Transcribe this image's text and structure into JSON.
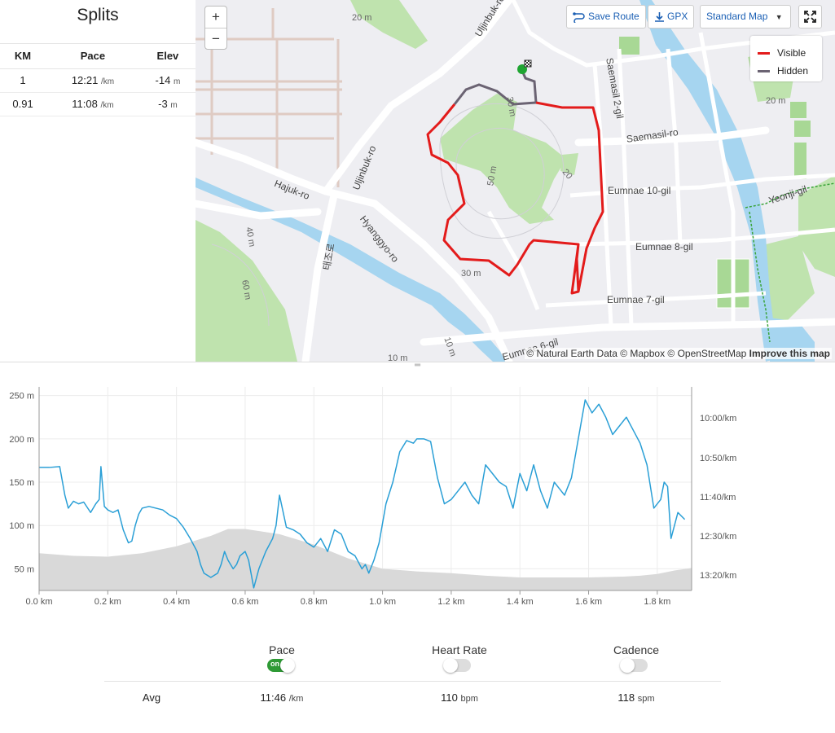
{
  "splits": {
    "title": "Splits",
    "columns": [
      "KM",
      "Pace",
      "Elev"
    ],
    "rows": [
      {
        "km": "1",
        "pace": "12:21",
        "pace_unit": "/km",
        "elev": "-14",
        "elev_unit": "m"
      },
      {
        "km": "0.91",
        "pace": "11:08",
        "pace_unit": "/km",
        "elev": "-3",
        "elev_unit": "m"
      }
    ]
  },
  "map": {
    "zoom_in": "+",
    "zoom_out": "−",
    "save_route": "Save Route",
    "gpx": "GPX",
    "style_select": "Standard Map",
    "legend": [
      {
        "label": "Visible",
        "color": "#e31b1b"
      },
      {
        "label": "Hidden",
        "color": "#6b6373"
      }
    ],
    "attribution": "© Natural Earth Data © Mapbox © OpenStreetMap",
    "improve": "Improve this map",
    "labels": {
      "uljinbuk_ro": "Uljinbuk-ro",
      "uljinbuk_ro_2": "Uljinbuk-ro",
      "hajuk_ro": "Hajuk-ro",
      "hyanggyo_ro": "Hyanggyo-ro",
      "korean": "태조로",
      "saemasil_2gil": "Saemasil 2-gil",
      "saemasil_ro": "Saemasil-ro",
      "eumnae_10gil": "Eumnae 10-gil",
      "eumnae_8gil": "Eumnae 8-gil",
      "eumnae_7gil": "Eumnae 7-gil",
      "eumnae_6gil": "Eumnae 6-gil",
      "yeonji_gil": "Yeonji-gil",
      "c20a": "20 m",
      "c20b": "20 m",
      "c20c": "20",
      "c30a": "30 m",
      "c30b": "30 m",
      "c50": "50 m",
      "c60": "60 m",
      "c10": "10 m",
      "c10b": "10 m",
      "c40": "40 m"
    }
  },
  "chart_data": {
    "type": "line",
    "xlabel": "",
    "xlim": [
      0,
      1.9
    ],
    "x_ticks": [
      "0.0 km",
      "0.2 km",
      "0.4 km",
      "0.6 km",
      "0.8 km",
      "1.0 km",
      "1.2 km",
      "1.4 km",
      "1.6 km",
      "1.8 km"
    ],
    "y_left_ticks": [
      "250 m",
      "200 m",
      "150 m",
      "100 m",
      "50 m"
    ],
    "y_left_values": [
      250,
      200,
      150,
      100,
      50
    ],
    "ylim_left": [
      25,
      260
    ],
    "y_right_ticks": [
      "10:00/km",
      "10:50/km",
      "11:40/km",
      "12:30/km",
      "13:20/km"
    ],
    "grid": true,
    "series": [
      {
        "role": "elevation",
        "color": "#d9d9d9",
        "x": [
          0.0,
          0.1,
          0.2,
          0.3,
          0.4,
          0.5,
          0.55,
          0.6,
          0.7,
          0.8,
          0.9,
          1.0,
          1.1,
          1.2,
          1.3,
          1.4,
          1.5,
          1.6,
          1.7,
          1.75,
          1.8,
          1.85,
          1.9
        ],
        "values": [
          68,
          65,
          64,
          68,
          76,
          88,
          96,
          96,
          90,
          78,
          62,
          50,
          47,
          45,
          42,
          40,
          40,
          40,
          41,
          42,
          44,
          48,
          51
        ]
      },
      {
        "role": "pace",
        "color": "#2a9fd6",
        "x": [
          0.0,
          0.03,
          0.06,
          0.075,
          0.085,
          0.1,
          0.115,
          0.13,
          0.15,
          0.165,
          0.175,
          0.18,
          0.19,
          0.2,
          0.215,
          0.23,
          0.245,
          0.26,
          0.27,
          0.28,
          0.29,
          0.3,
          0.32,
          0.34,
          0.36,
          0.38,
          0.4,
          0.42,
          0.44,
          0.46,
          0.47,
          0.48,
          0.5,
          0.52,
          0.53,
          0.54,
          0.55,
          0.565,
          0.575,
          0.585,
          0.6,
          0.61,
          0.625,
          0.64,
          0.66,
          0.68,
          0.69,
          0.7,
          0.72,
          0.74,
          0.76,
          0.78,
          0.8,
          0.82,
          0.84,
          0.86,
          0.88,
          0.9,
          0.92,
          0.94,
          0.95,
          0.96,
          0.975,
          0.99,
          1.01,
          1.03,
          1.05,
          1.07,
          1.09,
          1.1,
          1.12,
          1.14,
          1.16,
          1.18,
          1.2,
          1.22,
          1.24,
          1.26,
          1.28,
          1.3,
          1.32,
          1.34,
          1.36,
          1.38,
          1.4,
          1.42,
          1.44,
          1.46,
          1.48,
          1.5,
          1.52,
          1.53,
          1.55,
          1.57,
          1.59,
          1.61,
          1.63,
          1.65,
          1.67,
          1.69,
          1.71,
          1.73,
          1.75,
          1.77,
          1.79,
          1.81,
          1.82,
          1.83,
          1.84,
          1.86,
          1.88
        ],
        "values": [
          167,
          167,
          168,
          135,
          120,
          128,
          125,
          127,
          115,
          125,
          130,
          168,
          122,
          118,
          115,
          118,
          95,
          80,
          82,
          100,
          113,
          120,
          122,
          120,
          118,
          112,
          108,
          98,
          85,
          70,
          55,
          45,
          40,
          45,
          55,
          70,
          60,
          50,
          55,
          65,
          70,
          60,
          28,
          50,
          70,
          85,
          100,
          135,
          98,
          95,
          90,
          80,
          75,
          85,
          70,
          95,
          90,
          70,
          65,
          50,
          55,
          45,
          60,
          80,
          125,
          150,
          185,
          198,
          195,
          200,
          200,
          197,
          155,
          125,
          130,
          140,
          150,
          135,
          125,
          170,
          160,
          150,
          145,
          120,
          160,
          140,
          170,
          140,
          120,
          150,
          140,
          135,
          155,
          200,
          245,
          230,
          240,
          225,
          205,
          215,
          225,
          210,
          195,
          170,
          120,
          130,
          150,
          145,
          85,
          115,
          107
        ]
      }
    ]
  },
  "toggles": [
    {
      "label": "Pace",
      "state": "on",
      "on_text": "on"
    },
    {
      "label": "Heart Rate",
      "state": "off"
    },
    {
      "label": "Cadence",
      "state": "off"
    }
  ],
  "avg": {
    "label": "Avg",
    "pace": "11:46",
    "pace_unit": "/km",
    "hr": "110",
    "hr_unit": "bpm",
    "cadence": "118",
    "cadence_unit": "spm"
  }
}
